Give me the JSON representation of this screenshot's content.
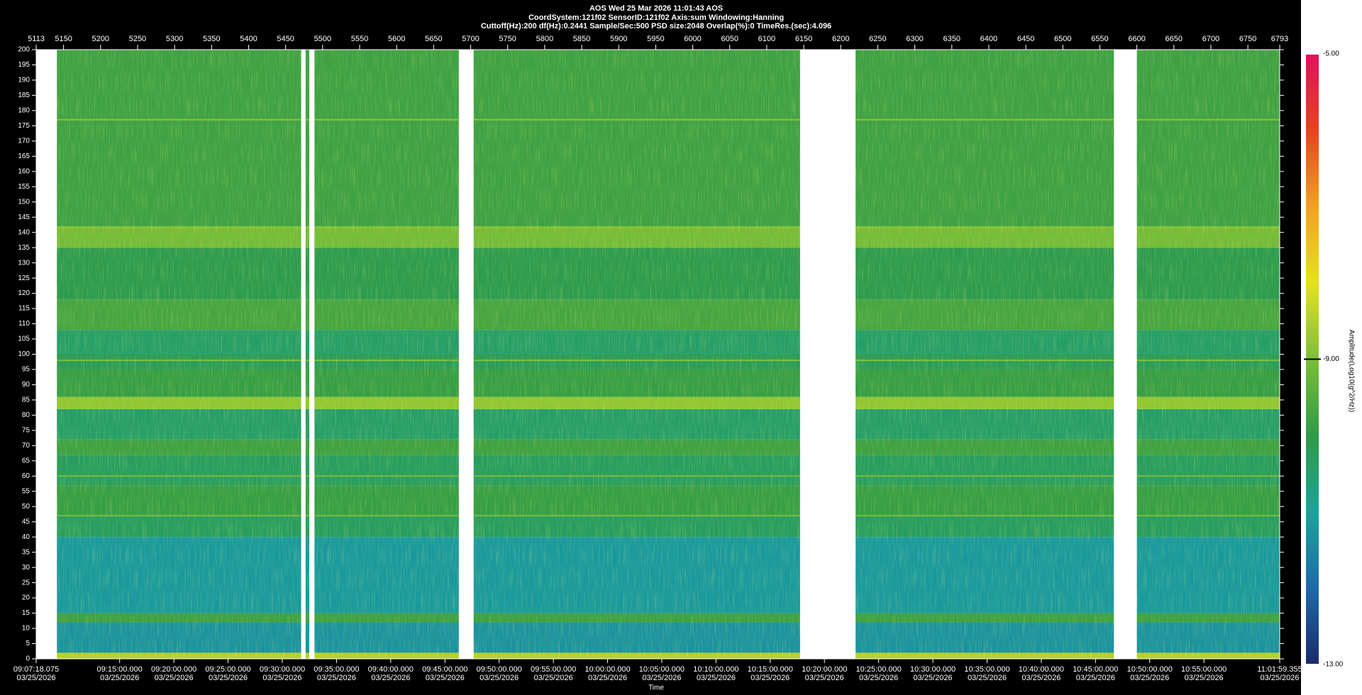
{
  "chart_data": {
    "type": "spectrogram",
    "title": "AOS  Wed 25 Mar 2026 11:01:43  AOS",
    "subtitle": [
      "CoordSystem:121f02   SensorID:121f02   Axis:sum    Windowing:Hanning",
      "Cuttoff(Hz):200      df(Hz):0.2441       Sample/Sec:500       PSD size:2048        Overlap(%):0        TimeRes.(sec):4.096"
    ],
    "x_label": "Time",
    "z_label": "Amplitude(Log10(g^2/Hz))",
    "xlim": [
      5113,
      6793
    ],
    "xticks": [
      5113,
      5150,
      5200,
      5250,
      5300,
      5350,
      5400,
      5450,
      5500,
      5550,
      5600,
      5650,
      5700,
      5750,
      5800,
      5850,
      5900,
      5950,
      6000,
      6050,
      6100,
      6150,
      6200,
      6250,
      6300,
      6350,
      6400,
      6450,
      6500,
      6550,
      6600,
      6650,
      6700,
      6750,
      6793
    ],
    "time_ticks": [
      {
        "time": "09:07:18.075",
        "date": "03/25/2026"
      },
      {
        "time": "09:15:00.000",
        "date": "03/25/2026"
      },
      {
        "time": "09:20:00.000",
        "date": "03/25/2026"
      },
      {
        "time": "09:25:00.000",
        "date": "03/25/2026"
      },
      {
        "time": "09:30:00.000",
        "date": "03/25/2026"
      },
      {
        "time": "09:35:00.000",
        "date": "03/25/2026"
      },
      {
        "time": "09:40:00.000",
        "date": "03/25/2026"
      },
      {
        "time": "09:45:00.000",
        "date": "03/25/2026"
      },
      {
        "time": "09:50:00.000",
        "date": "03/25/2026"
      },
      {
        "time": "09:55:00.000",
        "date": "03/25/2026"
      },
      {
        "time": "10:00:00.000",
        "date": "03/25/2026"
      },
      {
        "time": "10:05:00.000",
        "date": "03/25/2026"
      },
      {
        "time": "10:10:00.000",
        "date": "03/25/2026"
      },
      {
        "time": "10:15:00.000",
        "date": "03/25/2026"
      },
      {
        "time": "10:20:00.000",
        "date": "03/25/2026"
      },
      {
        "time": "10:25:00.000",
        "date": "03/25/2026"
      },
      {
        "time": "10:30:00.000",
        "date": "03/25/2026"
      },
      {
        "time": "10:35:00.000",
        "date": "03/25/2026"
      },
      {
        "time": "10:40:00.000",
        "date": "03/25/2026"
      },
      {
        "time": "10:45:00.000",
        "date": "03/25/2026"
      },
      {
        "time": "10:50:00.000",
        "date": "03/25/2026"
      },
      {
        "time": "10:55:00.000",
        "date": "03/25/2026"
      },
      {
        "time": "11:01:59.355",
        "date": "03/25/2026"
      }
    ],
    "ylim": [
      0,
      200
    ],
    "yticks": [
      0,
      5,
      10,
      15,
      20,
      25,
      30,
      35,
      40,
      45,
      50,
      55,
      60,
      65,
      70,
      75,
      80,
      85,
      90,
      95,
      100,
      105,
      110,
      115,
      120,
      125,
      130,
      135,
      140,
      145,
      150,
      155,
      160,
      165,
      170,
      175,
      180,
      185,
      190,
      195,
      200
    ],
    "zlim": [
      -13,
      -5
    ],
    "zticks": [
      {
        "value": -5,
        "label": "-5.00"
      },
      {
        "value": -9,
        "label": "-9.00"
      },
      {
        "value": -13,
        "label": "-13.00"
      }
    ],
    "colorscale": [
      "#1b2a6b",
      "#1f6aa8",
      "#19a59a",
      "#2f9a46",
      "#7cbf38",
      "#e6e21e",
      "#f2a21d",
      "#e9411f",
      "#e0105c"
    ],
    "segments": [
      [
        5141,
        5471
      ],
      [
        5477,
        5482
      ],
      [
        5489,
        5684
      ],
      [
        5704,
        6145
      ],
      [
        6220,
        6569
      ],
      [
        6600,
        6793
      ]
    ],
    "bands": [
      {
        "range": [
          0,
          2
        ],
        "value": -8.5
      },
      {
        "range": [
          2,
          12
        ],
        "value": -11.3
      },
      {
        "range": [
          12,
          15
        ],
        "value": -9.8
      },
      {
        "range": [
          15,
          40
        ],
        "value": -11.2
      },
      {
        "range": [
          40,
          47
        ],
        "value": -10.3
      },
      {
        "range": [
          47,
          57
        ],
        "value": -9.9
      },
      {
        "range": [
          57,
          67
        ],
        "value": -10.3
      },
      {
        "range": [
          67,
          72
        ],
        "value": -9.8
      },
      {
        "range": [
          72,
          82
        ],
        "value": -10.4
      },
      {
        "range": [
          82,
          86
        ],
        "value": -8.8
      },
      {
        "range": [
          86,
          95
        ],
        "value": -9.9
      },
      {
        "range": [
          95,
          100
        ],
        "value": -10.2
      },
      {
        "range": [
          100,
          108
        ],
        "value": -10.4
      },
      {
        "range": [
          108,
          118
        ],
        "value": -9.7
      },
      {
        "range": [
          118,
          135
        ],
        "value": -10.1
      },
      {
        "range": [
          135,
          142
        ],
        "value": -9.1
      },
      {
        "range": [
          142,
          200
        ],
        "value": -9.8
      }
    ],
    "lines": [
      {
        "freq": 177,
        "value": -8.9
      },
      {
        "freq": 141.5,
        "value": -8.9
      },
      {
        "freq": 98,
        "value": -9.0
      },
      {
        "freq": 60,
        "value": -9.1
      },
      {
        "freq": 47,
        "value": -9.1
      }
    ]
  }
}
